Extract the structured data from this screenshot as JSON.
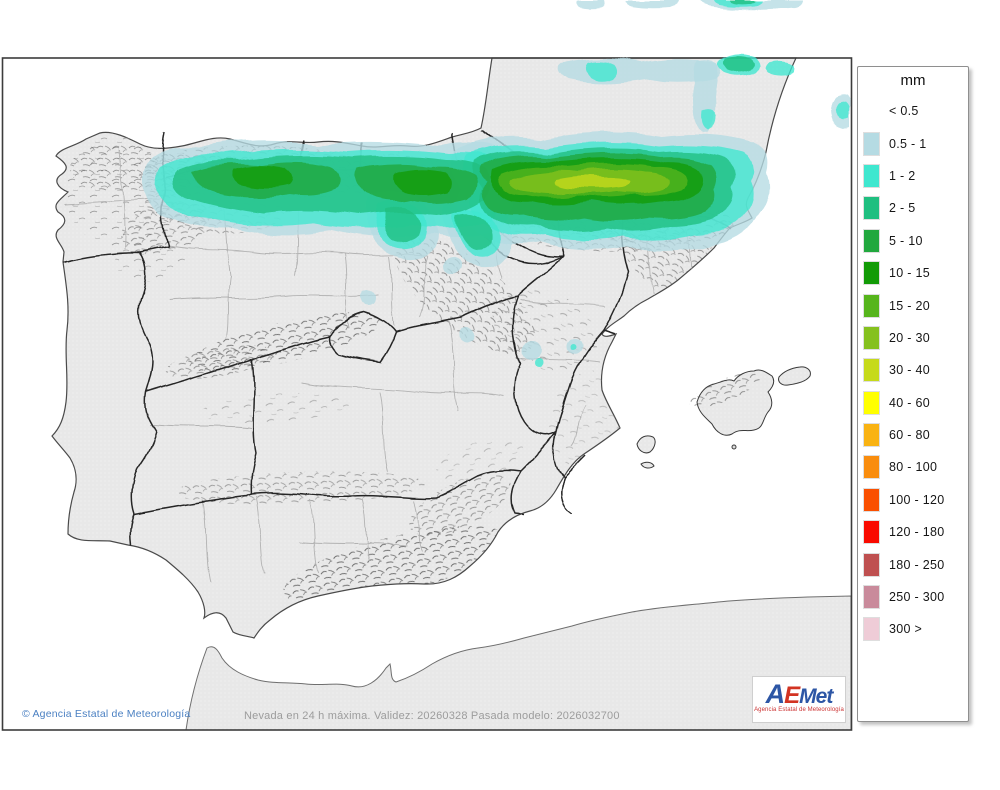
{
  "legend": {
    "title": "mm",
    "no_swatch_label": "< 0.5",
    "entries": [
      {
        "label": "0.5 - 1",
        "color": "#b5dbe3"
      },
      {
        "label": "1 - 2",
        "color": "#3fe7cf"
      },
      {
        "label": "2 - 5",
        "color": "#1fbf80"
      },
      {
        "label": "5 - 10",
        "color": "#21a83e"
      },
      {
        "label": "10 - 15",
        "color": "#129b06"
      },
      {
        "label": "15 - 20",
        "color": "#56b51c"
      },
      {
        "label": "20 - 30",
        "color": "#85c11e"
      },
      {
        "label": "30 - 40",
        "color": "#c6da1a"
      },
      {
        "label": "40 - 60",
        "color": "#ffff00"
      },
      {
        "label": "60 - 80",
        "color": "#f9b313"
      },
      {
        "label": "80 - 100",
        "color": "#f98d0e"
      },
      {
        "label": "100 - 120",
        "color": "#fa4f00"
      },
      {
        "label": "120 - 180",
        "color": "#f90a00"
      },
      {
        "label": "180 - 250",
        "color": "#bf5050"
      },
      {
        "label": "250 - 300",
        "color": "#c98a9b"
      },
      {
        "label": "300 >",
        "color": "#efccd7"
      }
    ]
  },
  "footer": {
    "copyright": "© Agencia Estatal de Meteorología",
    "model_info": "Nevada en 24 h máxima. Validez: 20260328 Pasada modelo: 2026032700"
  },
  "logo": {
    "a": "A",
    "e": "E",
    "met": "Met",
    "subtitle": "Agencia Estatal de Meteorología"
  },
  "map": {
    "sea_color": "#ffffff",
    "land_color": "#e8e8e8",
    "precip_levels": {
      "0.5-1": "#b5dbe3",
      "1-2": "#3fe7cf",
      "2-5": "#1fbf80",
      "5-10": "#21a83e",
      "10-15": "#129b06",
      "15-20": "#56b51c",
      "20-30": "#85c11e",
      "30-40": "#c6da1a"
    }
  }
}
